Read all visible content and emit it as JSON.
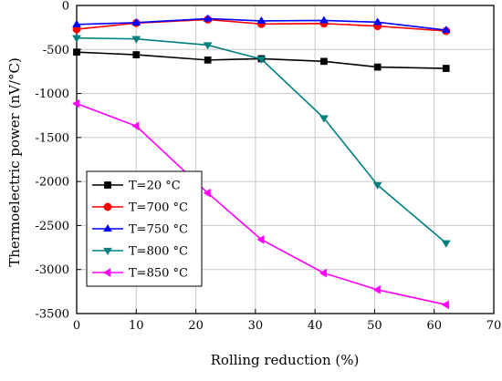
{
  "chart_data": {
    "type": "line",
    "title": "",
    "xlabel": "Rolling reduction (%)",
    "ylabel": "Thermoelectric power (nV/°C)",
    "xlim": [
      0,
      70
    ],
    "ylim": [
      -3500,
      0
    ],
    "xticks": [
      0,
      10,
      20,
      30,
      40,
      50,
      60,
      70
    ],
    "yticks": [
      0,
      -500,
      -1000,
      -1500,
      -2000,
      -2500,
      -3000,
      -3500
    ],
    "grid": true,
    "legend_position": "bottom-left",
    "series": [
      {
        "name": "T=20 °C",
        "color": "#000000",
        "marker": "square",
        "x": [
          0,
          10,
          22,
          31,
          41.5,
          50.5,
          62
        ],
        "y": [
          -530,
          -560,
          -620,
          -605,
          -635,
          -700,
          -715
        ]
      },
      {
        "name": "T=700 °C",
        "color": "#ff0000",
        "marker": "circle",
        "x": [
          0,
          10,
          22,
          31,
          41.5,
          50.5,
          62
        ],
        "y": [
          -270,
          -200,
          -160,
          -210,
          -205,
          -235,
          -290
        ]
      },
      {
        "name": "T=750 °C",
        "color": "#0000ff",
        "marker": "triangle-up",
        "x": [
          0,
          10,
          22,
          31,
          41.5,
          50.5,
          62
        ],
        "y": [
          -215,
          -195,
          -150,
          -175,
          -170,
          -190,
          -280
        ]
      },
      {
        "name": "T=800 °C",
        "color": "#008080",
        "marker": "triangle-down",
        "x": [
          0,
          10,
          22,
          31,
          41.5,
          50.5,
          62
        ],
        "y": [
          -370,
          -380,
          -450,
          -610,
          -1280,
          -2040,
          -2700
        ]
      },
      {
        "name": "T=850 °C",
        "color": "#ff00ff",
        "marker": "triangle-left",
        "x": [
          0,
          10,
          22,
          31,
          41.5,
          50.5,
          62
        ],
        "y": [
          -1115,
          -1370,
          -2130,
          -2660,
          -3040,
          -3230,
          -3400
        ]
      }
    ]
  }
}
